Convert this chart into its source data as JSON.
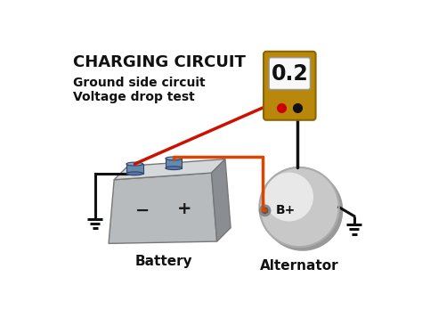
{
  "title": "CHARGING CIRCUIT",
  "sub1": "Ground side circuit",
  "sub2": "Voltage drop test",
  "meter_value": "0.2",
  "label_battery": "Battery",
  "label_alternator": "Alternator",
  "label_bplus": "B+",
  "bg": "#ffffff",
  "black": "#111111",
  "red_wire": "#cc1100",
  "orange_wire": "#dd4400",
  "battery_front": "#b8bbbe",
  "battery_top": "#d5d8db",
  "battery_side": "#8a8d91",
  "terminal_color": "#6688aa",
  "meter_gold": "#b8870b",
  "meter_dark_gold": "#8a6500",
  "meter_screen": "#f8f8f8",
  "alt_body": "#c8c8c8",
  "alt_light": "#e8e8e8",
  "alt_dark": "#aaaaaa",
  "ground_color": "#111111",
  "title_fs": 13,
  "sub_fs": 10,
  "label_fs": 11
}
